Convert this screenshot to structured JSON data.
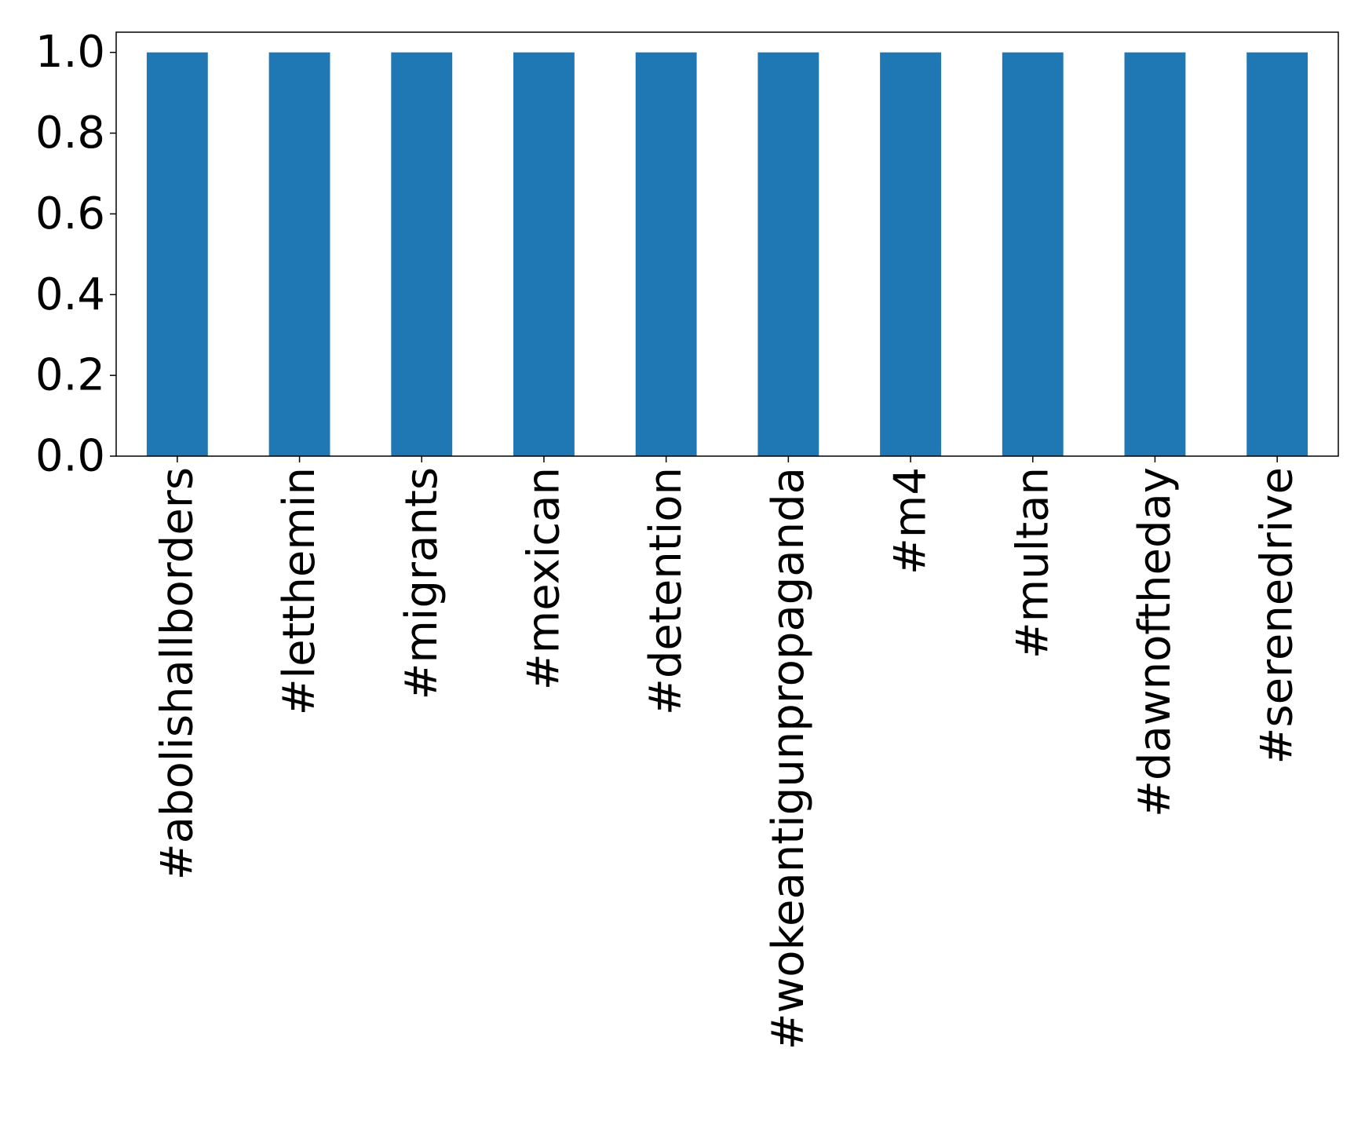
{
  "chart_data": {
    "type": "bar",
    "title": "",
    "xlabel": "",
    "ylabel": "",
    "categories": [
      "#abolishallborders",
      "#letthemin",
      "#migrants",
      "#mexican",
      "#detention",
      "#wokeantigunpropaganda",
      "#m4",
      "#multan",
      "#dawnoftheday",
      "#serenedrive"
    ],
    "values": [
      1.0,
      1.0,
      1.0,
      1.0,
      1.0,
      1.0,
      1.0,
      1.0,
      1.0,
      1.0
    ],
    "ylim": [
      0,
      1.05
    ],
    "yticks": [
      {
        "value": 0.0,
        "label": "0.0"
      },
      {
        "value": 0.2,
        "label": "0.2"
      },
      {
        "value": 0.4,
        "label": "0.4"
      },
      {
        "value": 0.6,
        "label": "0.6"
      },
      {
        "value": 0.8,
        "label": "0.8"
      },
      {
        "value": 1.0,
        "label": "1.0"
      }
    ],
    "grid": false,
    "legend": "none",
    "bar_color": "#1f77b4",
    "x_tick_rotation": "vertical"
  }
}
